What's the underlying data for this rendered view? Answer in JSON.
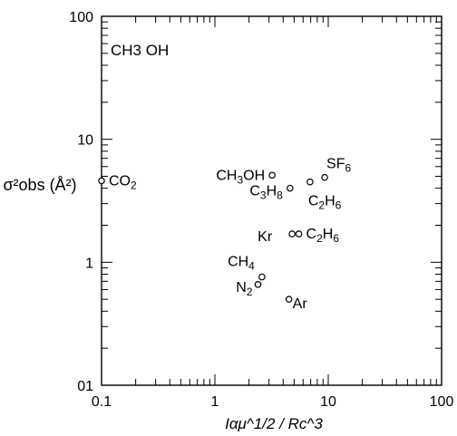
{
  "chart_data": {
    "type": "scatter",
    "title": "",
    "panel_title": "CH3 OH",
    "xlabel": "Iαμ^1/2 / Rc^3",
    "ylabel": "σ²obs (Å²)",
    "x_scale": "log",
    "y_scale": "log",
    "xlim": [
      0.1,
      100
    ],
    "ylim": [
      0.1,
      100
    ],
    "x_tick_labels": [
      "0.1",
      "1",
      "10",
      "100"
    ],
    "y_tick_labels": [
      "01",
      "1",
      "10",
      "100"
    ],
    "grid": false,
    "legend": "none",
    "points": [
      {
        "label": "CO2",
        "x": 0.1,
        "y": 4.6
      },
      {
        "label": "CH3OH",
        "x": 3.2,
        "y": 5.1
      },
      {
        "label": "C3H8",
        "x": 4.6,
        "y": 4.0
      },
      {
        "label": "C2H6",
        "x": 6.9,
        "y": 4.5
      },
      {
        "label": "SF6",
        "x": 9.3,
        "y": 4.9
      },
      {
        "label": "Kr",
        "x": 4.8,
        "y": 1.7
      },
      {
        "label": "C2H6",
        "x": 5.5,
        "y": 1.7
      },
      {
        "label": "CH4",
        "x": 2.6,
        "y": 0.76
      },
      {
        "label": "N2",
        "x": 2.4,
        "y": 0.66
      },
      {
        "label": "Ar",
        "x": 4.5,
        "y": 0.5
      }
    ]
  }
}
